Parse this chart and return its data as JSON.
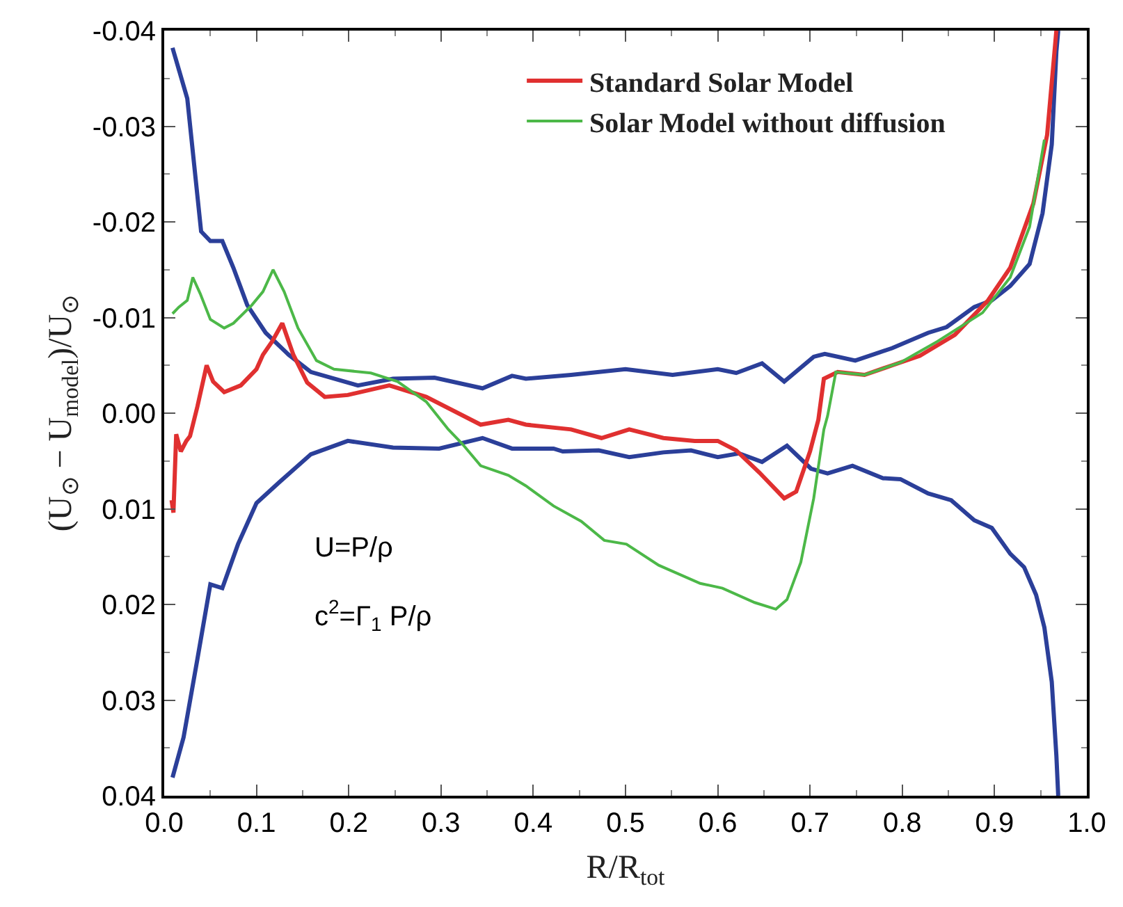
{
  "chart_data": {
    "type": "line",
    "xlabel": "R/R$_{tot}$",
    "ylabel": "(U$_{⊙}$ − U$_{model}$)/U$_{⊙}$",
    "xlim": [
      0,
      1
    ],
    "ylim": [
      0.04,
      -0.04
    ],
    "xticks": [
      {
        "value": 0,
        "label": "0.0"
      },
      {
        "value": 0.1,
        "label": "0.1"
      },
      {
        "value": 0.2,
        "label": "0.2"
      },
      {
        "value": 0.3,
        "label": "0.3"
      },
      {
        "value": 0.4,
        "label": "0.4"
      },
      {
        "value": 0.5,
        "label": "0.5"
      },
      {
        "value": 0.6,
        "label": "0.6"
      },
      {
        "value": 0.7,
        "label": "0.7"
      },
      {
        "value": 0.8,
        "label": "0.8"
      },
      {
        "value": 0.9,
        "label": "0.9"
      },
      {
        "value": 1,
        "label": "1.0"
      }
    ],
    "yticks": [
      {
        "value": -0.04,
        "label": "-0.04"
      },
      {
        "value": -0.03,
        "label": "-0.03"
      },
      {
        "value": -0.02,
        "label": "-0.02"
      },
      {
        "value": -0.01,
        "label": "-0.01"
      },
      {
        "value": 0,
        "label": "0.00"
      },
      {
        "value": 0.01,
        "label": "0.01"
      },
      {
        "value": 0.02,
        "label": "0.02"
      },
      {
        "value": 0.03,
        "label": "0.03"
      },
      {
        "value": 0.04,
        "label": "0.04"
      }
    ],
    "legend": "top",
    "marker": "none",
    "line_style": "solid",
    "annotations": [
      "U=P/ρ",
      "c$^{2}$=Γ$_{1}$ P/ρ"
    ],
    "series": [
      {
        "color": "#2b3f99",
        "x": [
          0.009,
          0.025,
          0.04,
          0.05,
          0.063,
          0.075,
          0.09,
          0.11,
          0.135,
          0.159,
          0.21,
          0.248,
          0.293,
          0.345,
          0.377,
          0.392,
          0.441,
          0.5,
          0.551,
          0.6,
          0.62,
          0.648,
          0.672,
          0.704,
          0.716,
          0.749,
          0.789,
          0.828,
          0.848,
          0.878,
          0.897,
          0.917,
          0.938,
          0.952,
          0.962,
          0.967,
          0.969
        ],
        "values": [
          -0.0382,
          -0.0329,
          -0.019,
          -0.018,
          -0.018,
          -0.0152,
          -0.0113,
          -0.0084,
          -0.0061,
          -0.0043,
          -0.0029,
          -0.0036,
          -0.0037,
          -0.0026,
          -0.0039,
          -0.0036,
          -0.004,
          -0.0046,
          -0.004,
          -0.0046,
          -0.0042,
          -0.0052,
          -0.0033,
          -0.0059,
          -0.0062,
          -0.0055,
          -0.0068,
          -0.0084,
          -0.009,
          -0.0111,
          -0.0118,
          -0.0133,
          -0.0156,
          -0.0209,
          -0.0281,
          -0.0378,
          -0.04
        ]
      },
      {
        "color": "#2b3f99",
        "x": [
          0.009,
          0.021,
          0.036,
          0.05,
          0.063,
          0.08,
          0.1,
          0.125,
          0.159,
          0.199,
          0.248,
          0.298,
          0.345,
          0.377,
          0.422,
          0.432,
          0.471,
          0.504,
          0.541,
          0.571,
          0.6,
          0.623,
          0.648,
          0.675,
          0.701,
          0.719,
          0.746,
          0.779,
          0.798,
          0.828,
          0.853,
          0.878,
          0.897,
          0.917,
          0.932,
          0.945,
          0.954,
          0.962,
          0.967,
          0.969
        ],
        "values": [
          0.0381,
          0.0339,
          0.0257,
          0.0179,
          0.0183,
          0.0137,
          0.0094,
          0.0072,
          0.0043,
          0.0029,
          0.0036,
          0.0037,
          0.0026,
          0.0037,
          0.0037,
          0.004,
          0.0039,
          0.0046,
          0.0041,
          0.0039,
          0.0046,
          0.0042,
          0.0051,
          0.0034,
          0.0058,
          0.0063,
          0.0055,
          0.0068,
          0.0069,
          0.0084,
          0.0091,
          0.0112,
          0.012,
          0.0147,
          0.0161,
          0.019,
          0.0224,
          0.0281,
          0.0358,
          0.04
        ]
      },
      {
        "name": "Standard Solar Model",
        "color": "#e03030",
        "x": [
          0.008,
          0.01,
          0.013,
          0.018,
          0.024,
          0.028,
          0.036,
          0.046,
          0.053,
          0.065,
          0.083,
          0.1,
          0.107,
          0.117,
          0.128,
          0.14,
          0.155,
          0.174,
          0.199,
          0.244,
          0.284,
          0.343,
          0.373,
          0.392,
          0.441,
          0.474,
          0.504,
          0.541,
          0.575,
          0.6,
          0.62,
          0.645,
          0.672,
          0.685,
          0.7,
          0.709,
          0.715,
          0.73,
          0.759,
          0.789,
          0.819,
          0.857,
          0.893,
          0.917,
          0.942,
          0.957,
          0.967
        ],
        "values": [
          0.0091,
          0.0104,
          0.0022,
          0.004,
          0.0029,
          0.0024,
          -0.0007,
          -0.005,
          -0.0033,
          -0.0022,
          -0.0029,
          -0.0046,
          -0.0061,
          -0.0075,
          -0.0094,
          -0.0061,
          -0.0032,
          -0.0017,
          -0.0019,
          -0.0029,
          -0.0017,
          0.0012,
          0.0007,
          0.0012,
          0.0017,
          0.0026,
          0.0017,
          0.0026,
          0.0029,
          0.0029,
          0.0039,
          0.0062,
          0.0089,
          0.0082,
          0.004,
          0.0007,
          -0.0036,
          -0.0043,
          -0.004,
          -0.005,
          -0.006,
          -0.0082,
          -0.0118,
          -0.0152,
          -0.0219,
          -0.0291,
          -0.04
        ]
      },
      {
        "name": "Solar Model without diffusion",
        "color": "#4cb848",
        "x": [
          0.009,
          0.016,
          0.025,
          0.031,
          0.039,
          0.05,
          0.065,
          0.075,
          0.095,
          0.107,
          0.118,
          0.13,
          0.145,
          0.165,
          0.184,
          0.224,
          0.253,
          0.284,
          0.308,
          0.323,
          0.343,
          0.373,
          0.392,
          0.422,
          0.452,
          0.477,
          0.501,
          0.536,
          0.581,
          0.605,
          0.64,
          0.663,
          0.675,
          0.69,
          0.704,
          0.715,
          0.719,
          0.728,
          0.759,
          0.798,
          0.838,
          0.887,
          0.917,
          0.938,
          0.954
        ],
        "values": [
          -0.0104,
          -0.0111,
          -0.0118,
          -0.0142,
          -0.0125,
          -0.0098,
          -0.0089,
          -0.0094,
          -0.0113,
          -0.0127,
          -0.015,
          -0.0127,
          -0.0089,
          -0.0055,
          -0.0046,
          -0.0042,
          -0.0033,
          -0.0012,
          0.0017,
          0.0032,
          0.0055,
          0.0065,
          0.0076,
          0.0097,
          0.0113,
          0.0133,
          0.0137,
          0.0159,
          0.0178,
          0.0183,
          0.0198,
          0.0205,
          0.0195,
          0.0156,
          0.0089,
          0.0017,
          0.0003,
          -0.0043,
          -0.004,
          -0.0053,
          -0.0075,
          -0.0105,
          -0.0142,
          -0.0195,
          -0.0286
        ]
      }
    ]
  }
}
